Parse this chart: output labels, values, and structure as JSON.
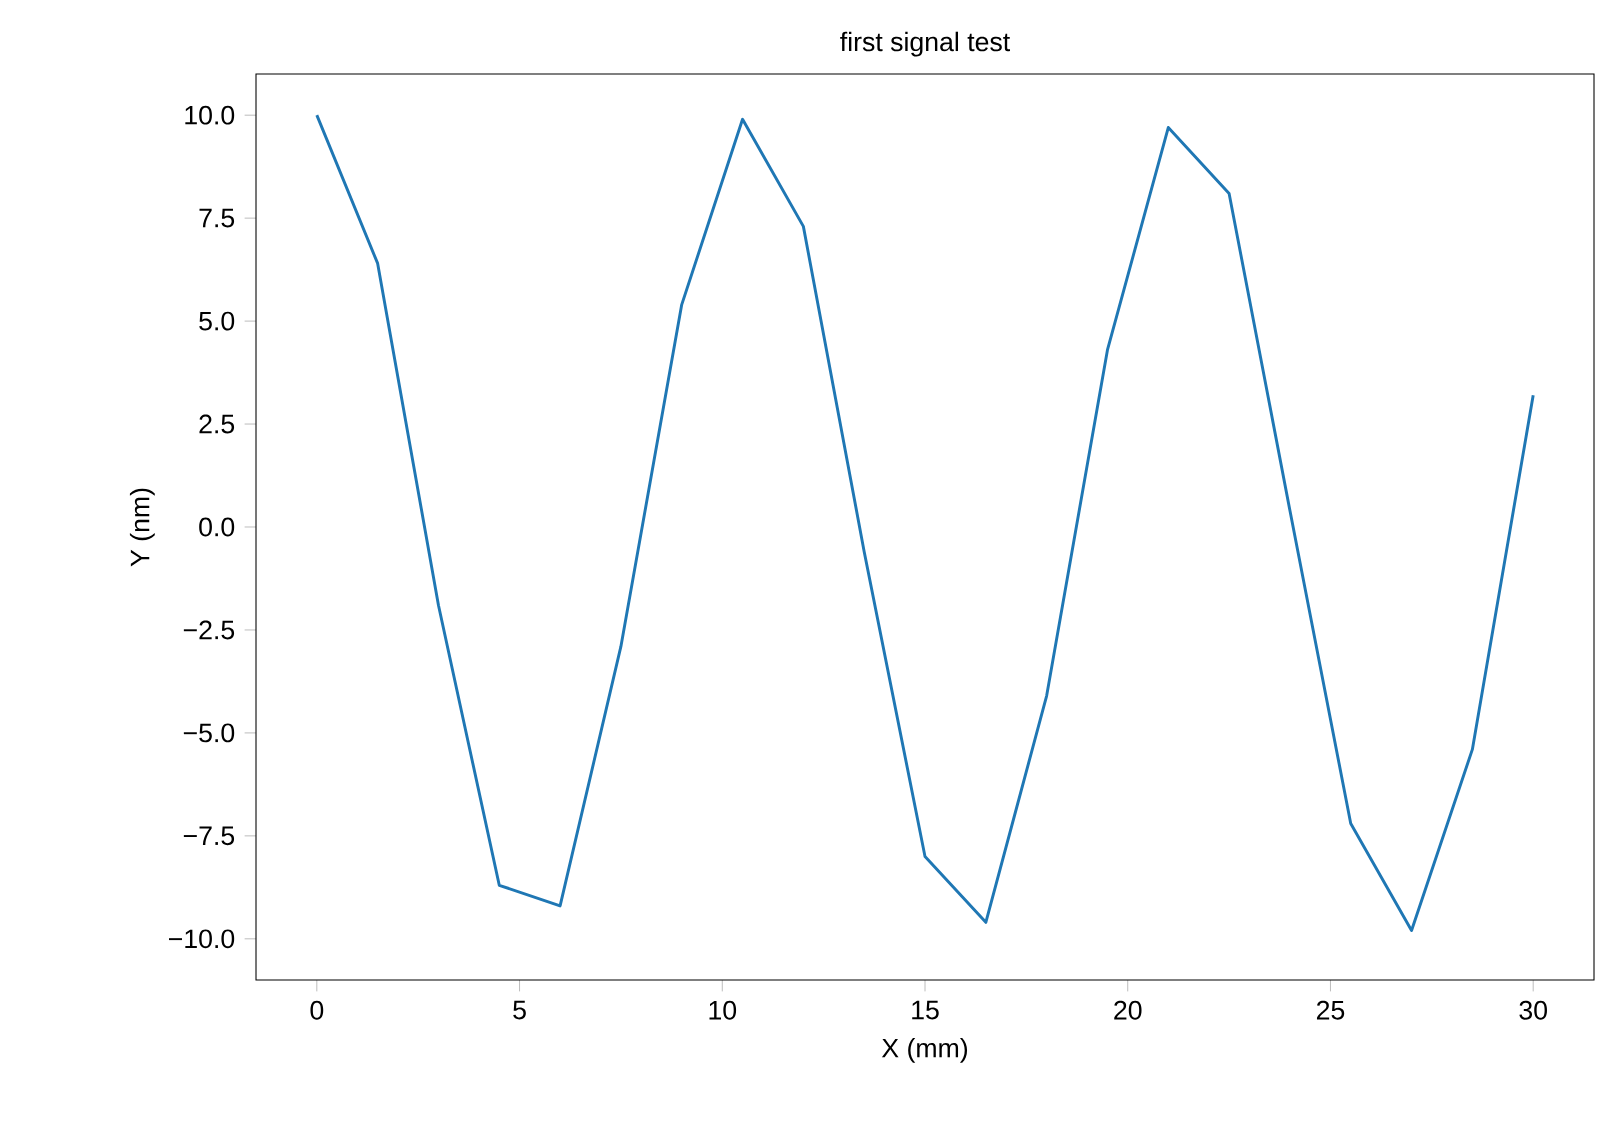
{
  "chart_data": {
    "type": "line",
    "title": "first signal test",
    "xlabel": "X (mm)",
    "ylabel": "Y (nm)",
    "x": [
      0,
      1.5,
      3,
      4.5,
      6,
      7.5,
      9,
      10.5,
      12,
      13.5,
      15,
      16.5,
      18,
      19.5,
      21,
      22.5,
      24,
      25.5,
      27,
      28.5,
      30
    ],
    "series": [
      {
        "color": "#1f77b4",
        "values": [
          10.0,
          6.4,
          -1.9,
          -8.7,
          -9.2,
          -2.9,
          5.4,
          9.9,
          7.3,
          -0.6,
          -8.0,
          -9.6,
          -4.1,
          4.3,
          9.7,
          8.1,
          0.4,
          -7.2,
          -9.8,
          -5.4,
          3.2
        ]
      }
    ],
    "xlim": [
      -1.5,
      31.5
    ],
    "ylim": [
      -11,
      11
    ],
    "xticks": [
      0,
      5,
      10,
      15,
      20,
      25,
      30
    ],
    "yticks": [
      {
        "value": -10,
        "label": "−10.0"
      },
      {
        "value": -7.5,
        "label": "−7.5"
      },
      {
        "value": -5,
        "label": "−5.0"
      },
      {
        "value": -2.5,
        "label": "−2.5"
      },
      {
        "value": 0,
        "label": "0.0"
      },
      {
        "value": 2.5,
        "label": "2.5"
      },
      {
        "value": 5,
        "label": "5.0"
      },
      {
        "value": 7.5,
        "label": "7.5"
      },
      {
        "value": 10,
        "label": "10.0"
      }
    ],
    "marker": "none",
    "line_style": "solid"
  }
}
